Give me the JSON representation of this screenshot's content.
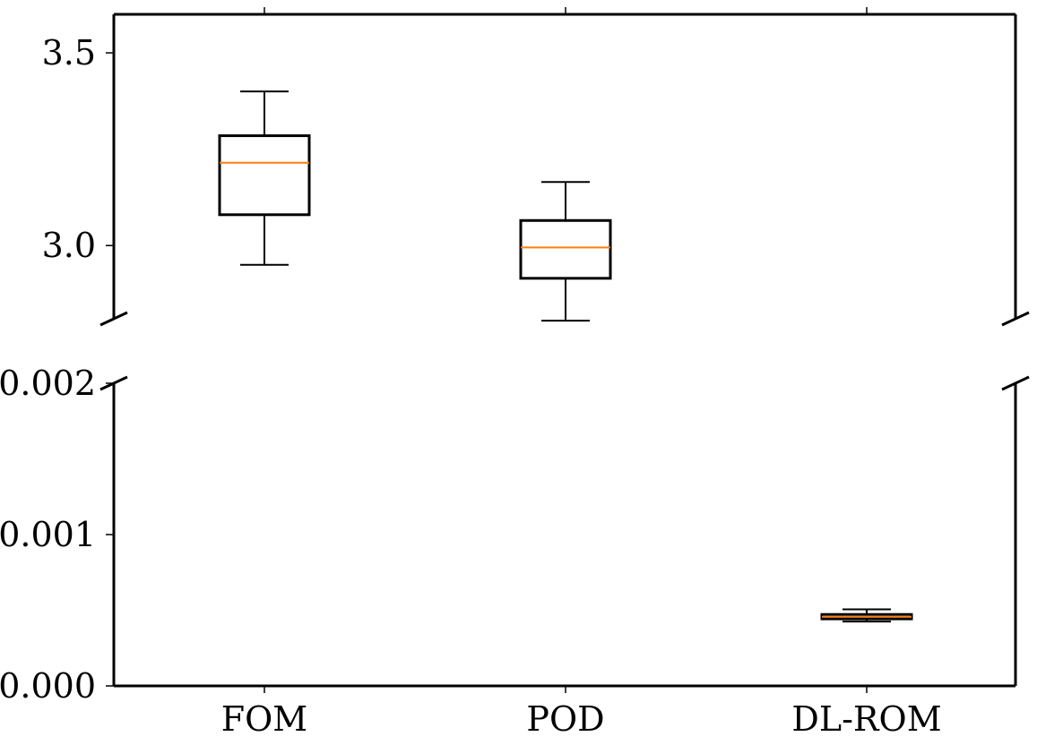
{
  "chart_data": {
    "type": "boxplot",
    "broken_axis": true,
    "categories": [
      "FOM",
      "POD",
      "DL-ROM"
    ],
    "median_color": "#ff7f0e",
    "panels": [
      {
        "name": "top",
        "ylim": [
          2.81,
          3.6
        ],
        "yticks": [
          3.0,
          3.5
        ],
        "ytick_labels": [
          "3.0",
          "3.5"
        ],
        "boxes": [
          {
            "category": "FOM",
            "whisker_low": 2.95,
            "q1": 3.08,
            "median": 3.215,
            "q3": 3.285,
            "whisker_high": 3.4
          },
          {
            "category": "POD",
            "whisker_low": 2.805,
            "q1": 2.915,
            "median": 2.995,
            "q3": 3.065,
            "whisker_high": 3.165
          }
        ]
      },
      {
        "name": "bottom",
        "ylim": [
          0.0,
          0.002
        ],
        "yticks": [
          0.0,
          0.001,
          0.002
        ],
        "ytick_labels": [
          "0.000",
          "0.001",
          "0.002"
        ],
        "boxes": [
          {
            "category": "DL-ROM",
            "whisker_low": 0.000425,
            "q1": 0.000443,
            "median": 0.000457,
            "q3": 0.000472,
            "whisker_high": 0.000506
          }
        ]
      }
    ]
  }
}
